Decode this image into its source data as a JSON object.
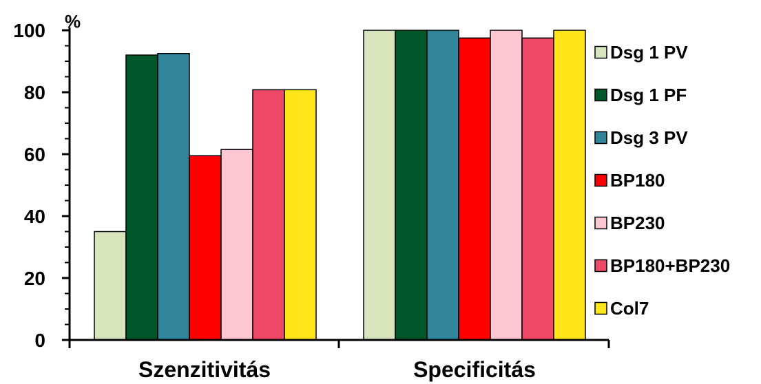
{
  "chart_data": {
    "type": "bar",
    "title": "",
    "xlabel": "",
    "ylabel": "%",
    "ylim": [
      0,
      100
    ],
    "yticks": [
      "0",
      "20",
      "40",
      "60",
      "80",
      "100"
    ],
    "categories": [
      "Szenzitivitás",
      "Specificitás"
    ],
    "series": [
      {
        "name": "Dsg 1 PV",
        "color": "#d8e4bc",
        "values": [
          35,
          100
        ]
      },
      {
        "name": "Dsg 1 PF",
        "color": "#00572a",
        "values": [
          92,
          100
        ]
      },
      {
        "name": "Dsg 3 PV",
        "color": "#31859b",
        "values": [
          92.5,
          100
        ]
      },
      {
        "name": "BP180",
        "color": "#ff0000",
        "values": [
          59.5,
          97.5
        ]
      },
      {
        "name": "BP230",
        "color": "#ffc7d2",
        "values": [
          61.5,
          100
        ]
      },
      {
        "name": "BP180+BP230",
        "color": "#ee4966",
        "values": [
          80.8,
          97.5
        ]
      },
      {
        "name": "Col7",
        "color": "#ffe51a",
        "values": [
          80.8,
          100
        ]
      }
    ],
    "grid": false,
    "legend": "right"
  }
}
